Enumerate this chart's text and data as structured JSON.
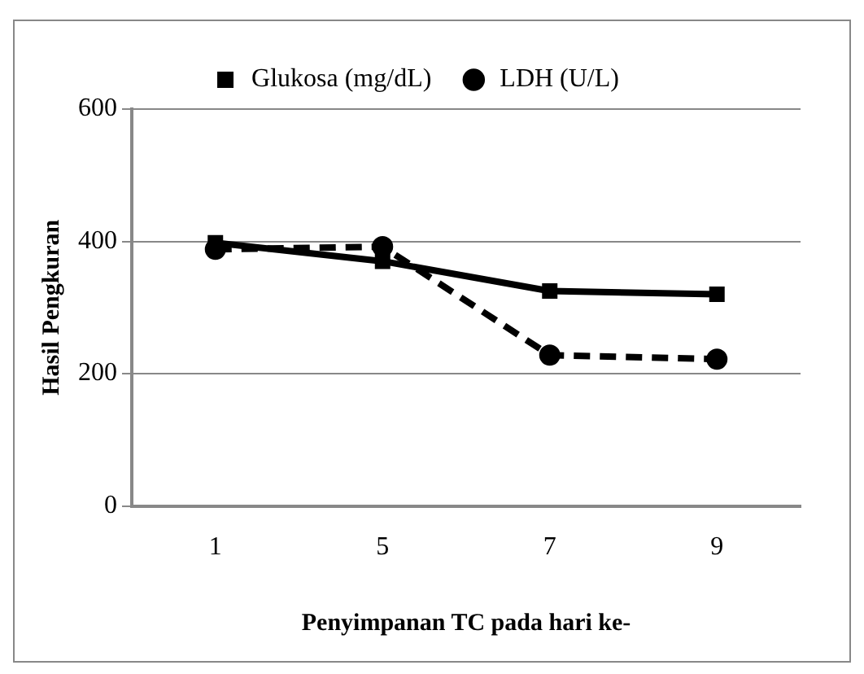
{
  "chart_data": {
    "type": "line",
    "xlabel": "Penyimpanan TC pada hari ke-",
    "ylabel": "Hasil Pengkuran",
    "categories": [
      "1",
      "5",
      "7",
      "9"
    ],
    "series": [
      {
        "name": "Glukosa (mg/dL)",
        "color": "#000000",
        "values": [
          398,
          370,
          325,
          320
        ],
        "marker": "square",
        "line_style": "solid"
      },
      {
        "name": "LDH (U/L)",
        "color": "#000000",
        "values": [
          388,
          392,
          228,
          222
        ],
        "marker": "circle",
        "line_style": "dashed"
      }
    ],
    "ylim": [
      0,
      600
    ],
    "yticks": [
      0,
      200,
      400,
      600
    ],
    "grid": "y",
    "legend": "top"
  }
}
